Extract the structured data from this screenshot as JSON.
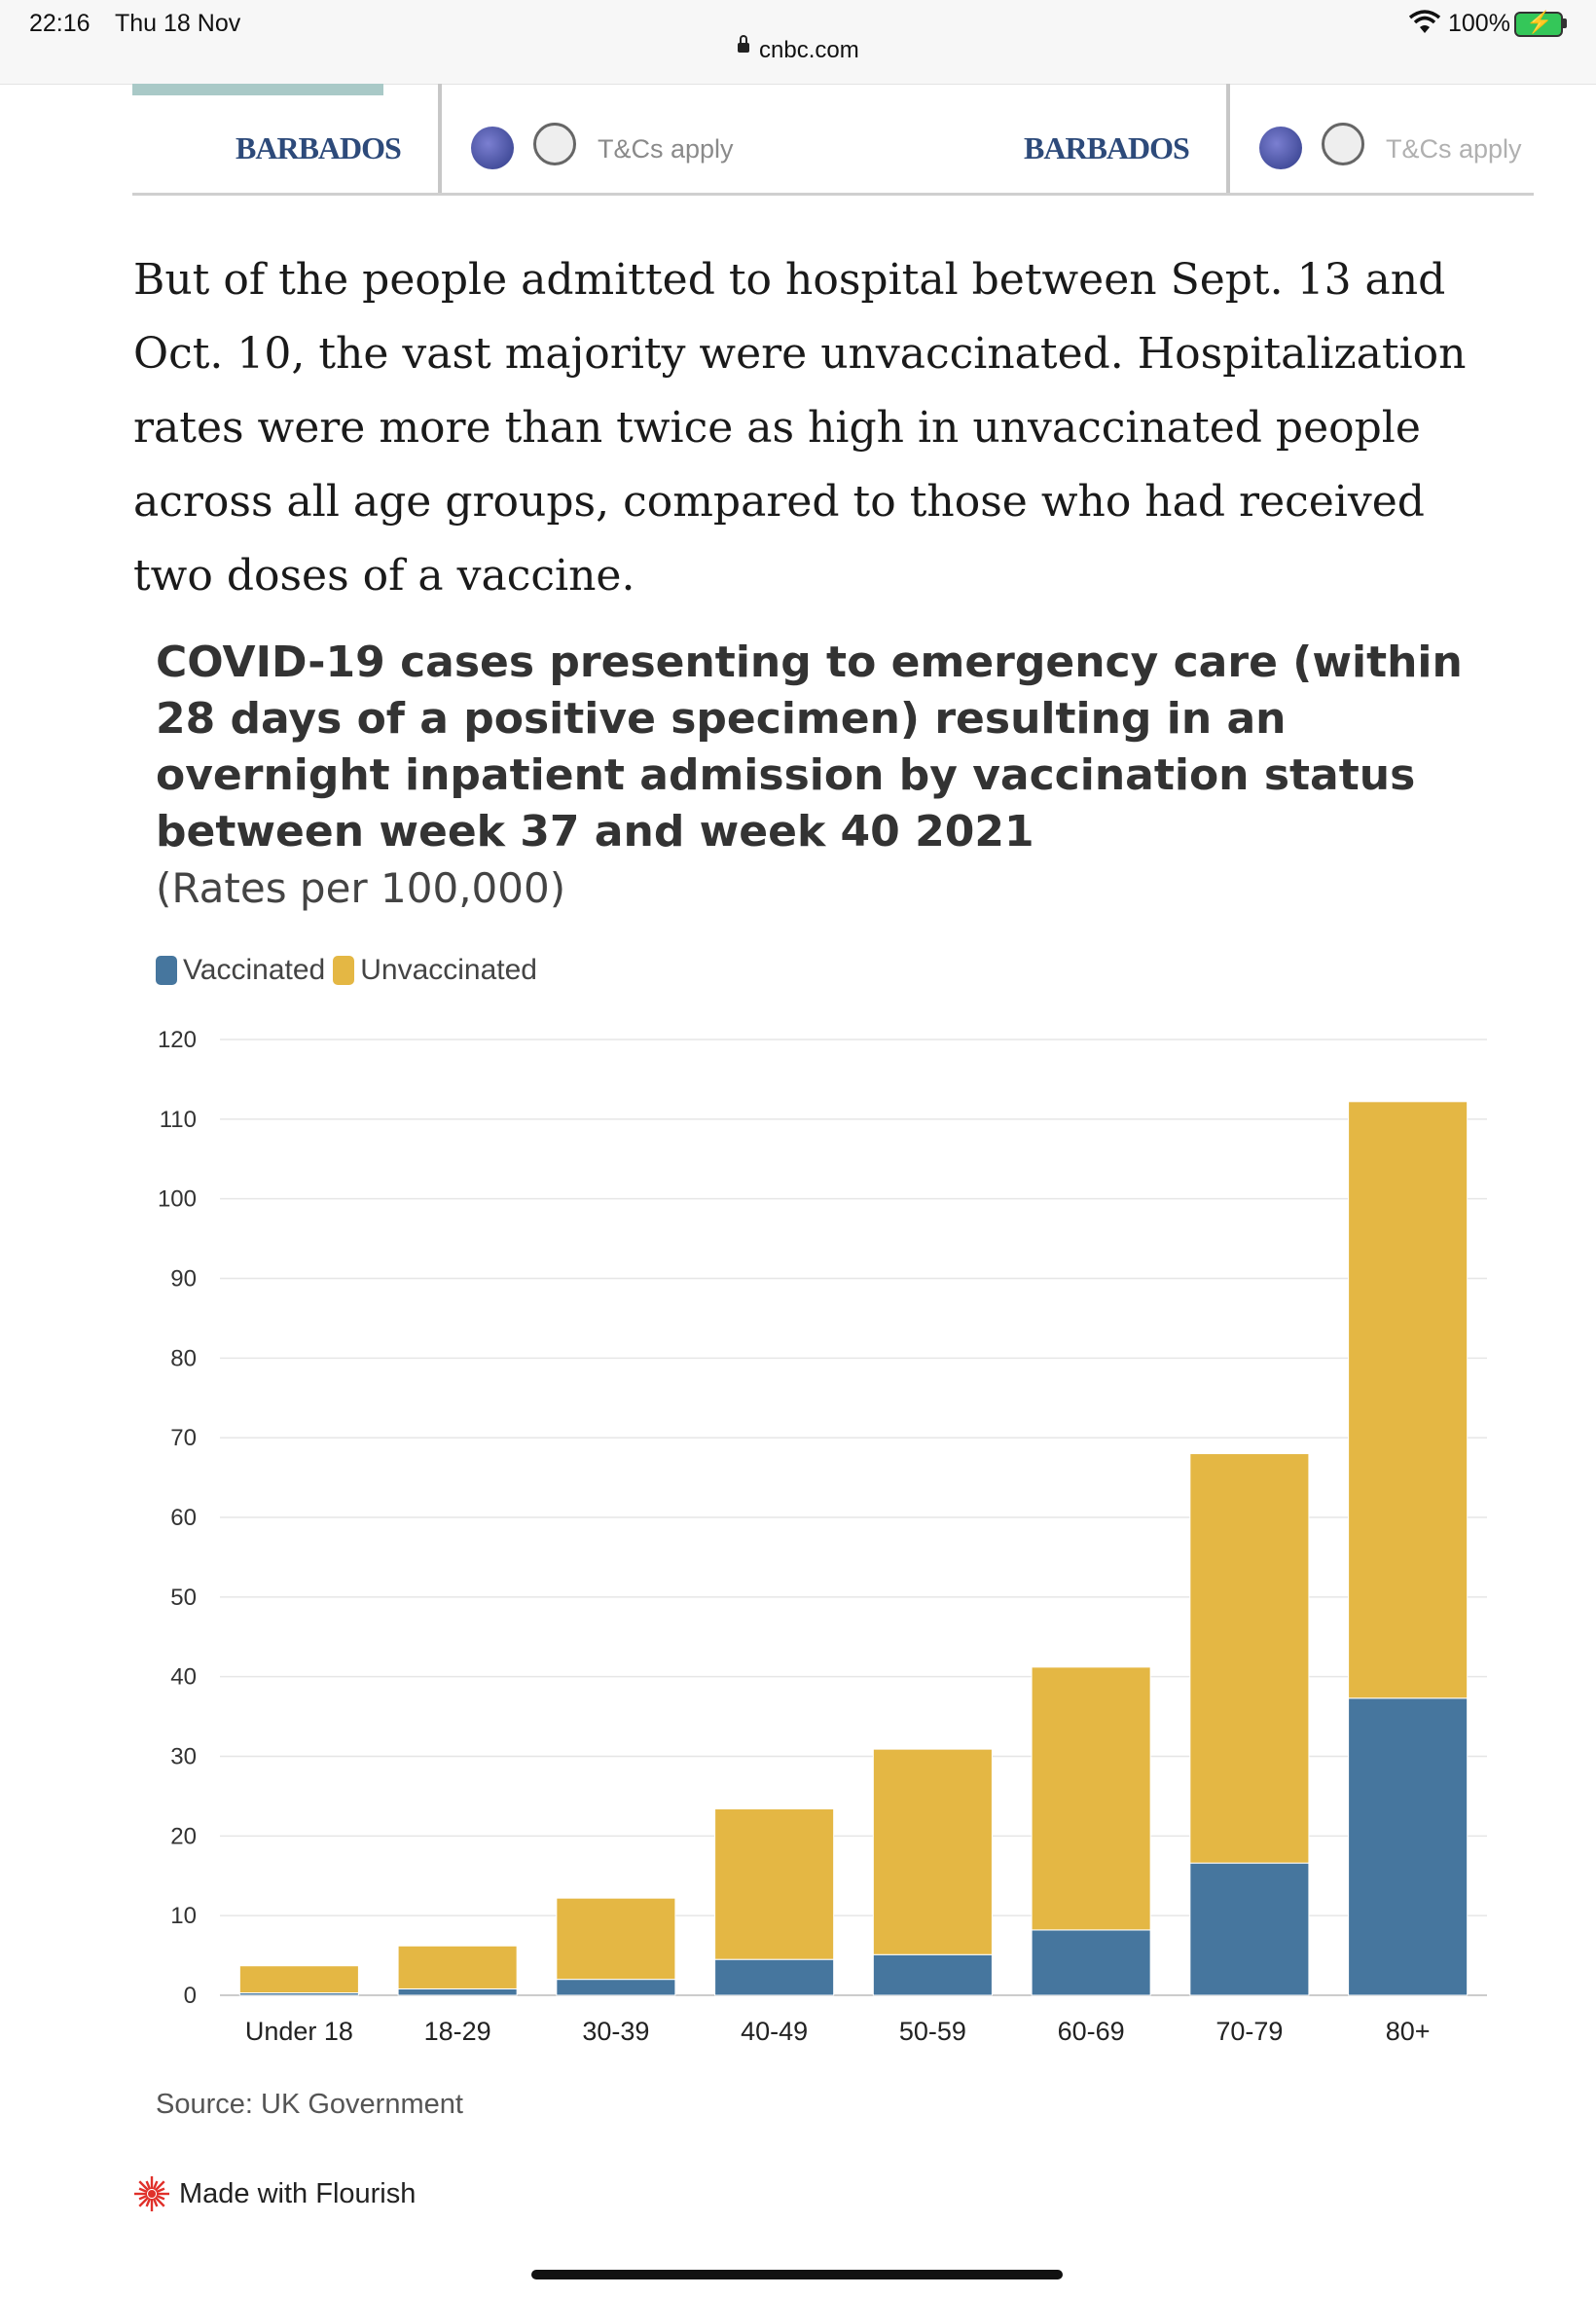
{
  "status_bar": {
    "time": "22:16",
    "date": "Thu 18 Nov",
    "battery": "100%",
    "url": "cnbc.com"
  },
  "ad": {
    "brand": "BARBADOS",
    "terms": "T&Cs apply",
    "brand_color": "#2d4a7a"
  },
  "article": {
    "paragraph": "But of the people admitted to hospital between Sept. 13 and Oct. 10, the vast majority were unvaccinated. Hospitalization rates were more than twice as high in unvaccinated people across all age groups, compared to those who had received two doses of a vaccine."
  },
  "chart_data": {
    "type": "bar",
    "stacked": true,
    "title": "COVID-19 cases presenting to emergency care (within 28 days of a positive specimen) resulting in an overnight inpatient admission by vaccination status between week 37 and week 40 2021",
    "subtitle": "(Rates per 100,000)",
    "categories": [
      "Under 18",
      "18-29",
      "30-39",
      "40-49",
      "50-59",
      "60-69",
      "70-79",
      "80+"
    ],
    "series": [
      {
        "name": "Vaccinated",
        "color": "#46769e",
        "values": [
          0.3,
          0.8,
          2.0,
          4.5,
          5.1,
          8.2,
          16.6,
          37.3
        ]
      },
      {
        "name": "Unvaccinated",
        "color": "#e4b744",
        "values": [
          3.4,
          5.4,
          10.2,
          18.9,
          25.8,
          33.0,
          51.4,
          74.9
        ]
      }
    ],
    "ylim": [
      0,
      120
    ],
    "yticks": [
      0,
      10,
      20,
      30,
      40,
      50,
      60,
      70,
      80,
      90,
      100,
      110,
      120
    ],
    "grid": true,
    "legend": "top-left",
    "source": "Source: UK Government",
    "credit": "Made with Flourish"
  }
}
